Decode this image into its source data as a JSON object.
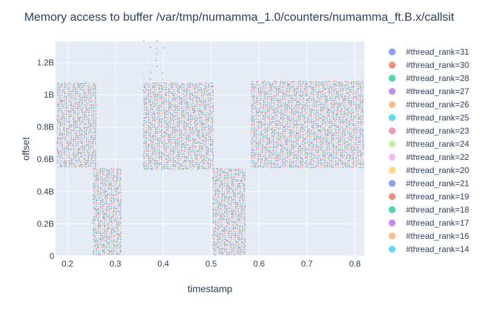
{
  "chart_data": {
    "type": "scatter",
    "title": "Memory access to buffer /var/tmp/numamma_1.0/counters/numamma_ft.B.x/callsit",
    "xlabel": "timestamp",
    "ylabel": "offset",
    "xlim": [
      0.175,
      0.82
    ],
    "ylim": [
      0,
      1.33
    ],
    "y_unit": "billions",
    "x_ticks": [
      {
        "value": 0.2,
        "label": "0.2"
      },
      {
        "value": 0.3,
        "label": "0.3"
      },
      {
        "value": 0.4,
        "label": "0.4"
      },
      {
        "value": 0.5,
        "label": "0.5"
      },
      {
        "value": 0.6,
        "label": "0.6"
      },
      {
        "value": 0.7,
        "label": "0.7"
      },
      {
        "value": 0.8,
        "label": "0.8"
      }
    ],
    "y_ticks": [
      {
        "value": 0,
        "label": "0"
      },
      {
        "value": 0.2,
        "label": "0.2B"
      },
      {
        "value": 0.4,
        "label": "0.4B"
      },
      {
        "value": 0.6,
        "label": "0.6B"
      },
      {
        "value": 0.8,
        "label": "0.8B"
      },
      {
        "value": 1.0,
        "label": "1B"
      },
      {
        "value": 1.2,
        "label": "1.2B"
      }
    ],
    "grid": true,
    "legend_position": "right",
    "background": "#e5ecf6",
    "series": [
      {
        "name": "#thread_rank=31",
        "color": "#8d9ef5"
      },
      {
        "name": "#thread_rank=30",
        "color": "#f08f7b"
      },
      {
        "name": "#thread_rank=28",
        "color": "#4fd6ae"
      },
      {
        "name": "#thread_rank=27",
        "color": "#c290f5"
      },
      {
        "name": "#thread_rank=26",
        "color": "#fdbb8a"
      },
      {
        "name": "#thread_rank=25",
        "color": "#5edbf0"
      },
      {
        "name": "#thread_rank=23",
        "color": "#f895b0"
      },
      {
        "name": "#thread_rank=24",
        "color": "#cdeaa6"
      },
      {
        "name": "#thread_rank=22",
        "color": "#f7b9f0"
      },
      {
        "name": "#thread_rank=20",
        "color": "#fdd782"
      },
      {
        "name": "#thread_rank=21",
        "color": "#8d9ef5"
      },
      {
        "name": "#thread_rank=19",
        "color": "#f08f7b"
      },
      {
        "name": "#thread_rank=18",
        "color": "#4fd6ae"
      },
      {
        "name": "#thread_rank=17",
        "color": "#c290f5"
      },
      {
        "name": "#thread_rank=16",
        "color": "#fdbb8a"
      },
      {
        "name": "#thread_rank=14",
        "color": "#5edbf0"
      }
    ],
    "access_regions": [
      {
        "x": [
          0.18,
          0.26
        ],
        "y": [
          0.55,
          1.07
        ],
        "density": "high"
      },
      {
        "x": [
          0.255,
          0.315
        ],
        "y": [
          0.0,
          0.54
        ],
        "density": "high"
      },
      {
        "x": [
          0.36,
          0.41
        ],
        "y": [
          1.07,
          1.33
        ],
        "density": "sparse"
      },
      {
        "x": [
          0.36,
          0.505
        ],
        "y": [
          0.54,
          1.07
        ],
        "density": "high"
      },
      {
        "x": [
          0.505,
          0.57
        ],
        "y": [
          0.0,
          0.54
        ],
        "density": "high"
      },
      {
        "x": [
          0.585,
          0.82
        ],
        "y": [
          0.54,
          1.08
        ],
        "density": "high"
      }
    ]
  }
}
